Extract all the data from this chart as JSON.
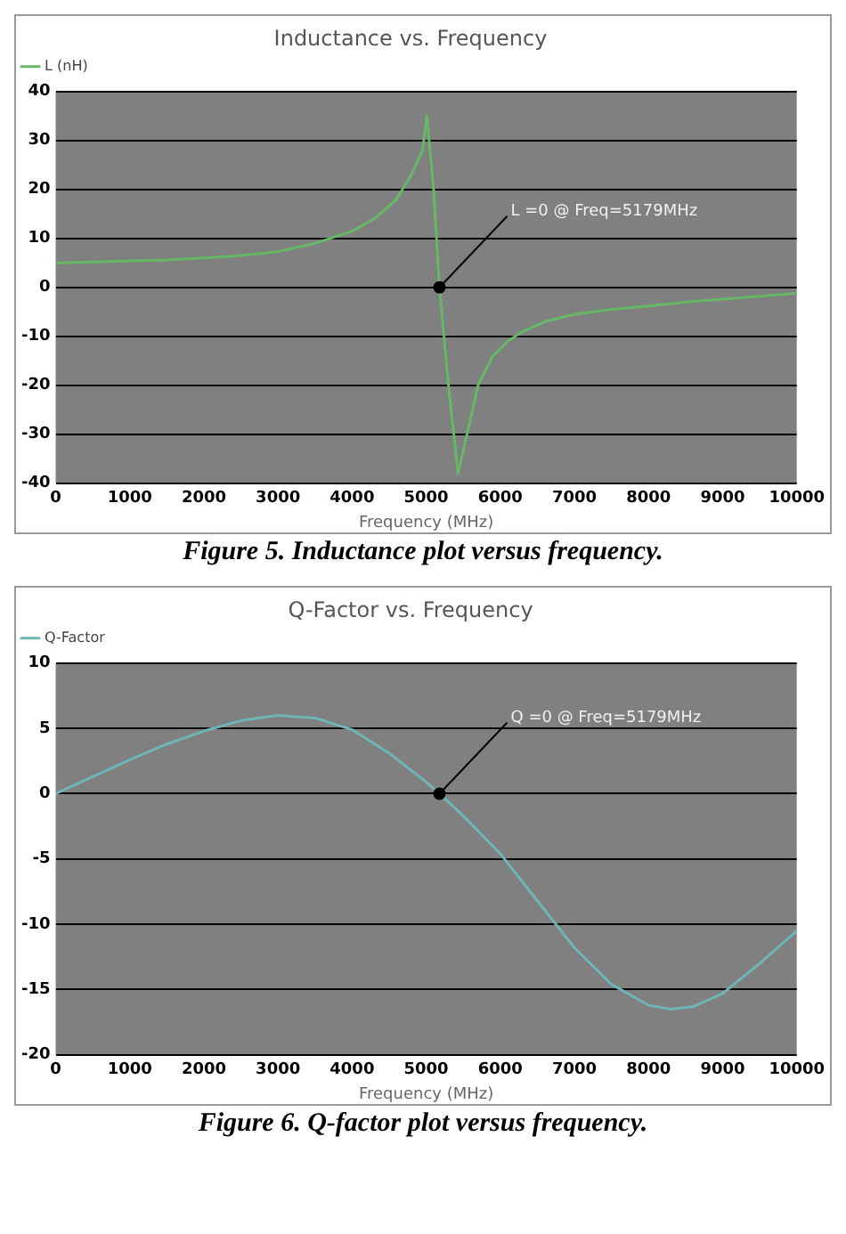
{
  "chart_data": [
    {
      "type": "line",
      "title": "Inductance vs. Frequency",
      "xlabel": "Frequency (MHz)",
      "series": [
        {
          "name": "L (nH)",
          "color": "#66b866",
          "x": [
            0,
            500,
            1000,
            1500,
            2000,
            2500,
            3000,
            3500,
            4000,
            4300,
            4600,
            4800,
            4950,
            5010,
            5100,
            5179,
            5300,
            5430,
            5550,
            5700,
            5900,
            6100,
            6300,
            6600,
            7000,
            7500,
            8000,
            8500,
            9000,
            9500,
            10000
          ],
          "values": [
            5,
            5.2,
            5.4,
            5.6,
            6,
            6.5,
            7.3,
            9,
            11.5,
            14,
            18,
            23,
            28,
            35,
            20,
            0,
            -20,
            -38,
            -30,
            -20,
            -14,
            -11,
            -9,
            -7,
            -5.5,
            -4.5,
            -3.8,
            -3,
            -2.4,
            -1.8,
            -1.2
          ]
        }
      ],
      "xlim": [
        0,
        10000
      ],
      "xticks": [
        0,
        1000,
        2000,
        3000,
        4000,
        5000,
        6000,
        7000,
        8000,
        9000,
        10000
      ],
      "ylim": [
        -40,
        40
      ],
      "yticks": [
        -40,
        -30,
        -20,
        -10,
        0,
        10,
        20,
        30,
        40
      ],
      "grid": "y",
      "legend": "top left",
      "marker": "none",
      "line_style": "solid",
      "annotations": [
        {
          "text": "L =0 @ Freq=5179MHz",
          "x": 5179,
          "y": 0
        },
        "Figure 5.  Inductance plot versus frequency."
      ]
    },
    {
      "type": "line",
      "title": "Q-Factor vs. Frequency",
      "xlabel": "Frequency (MHz)",
      "series": [
        {
          "name": "Q-Factor",
          "color": "#6fb5b5",
          "x": [
            0,
            500,
            1000,
            1500,
            2000,
            2500,
            3000,
            3500,
            4000,
            4500,
            5000,
            5179,
            5500,
            6000,
            6500,
            7000,
            7500,
            8000,
            8300,
            8600,
            9000,
            9500,
            10000
          ],
          "values": [
            0,
            1.3,
            2.6,
            3.8,
            4.8,
            5.6,
            6,
            5.8,
            4.9,
            3.1,
            0.9,
            0,
            -1.7,
            -4.6,
            -8.2,
            -11.8,
            -14.6,
            -16.2,
            -16.5,
            -16.3,
            -15.3,
            -13,
            -10.5
          ]
        }
      ],
      "xlim": [
        0,
        10000
      ],
      "xticks": [
        0,
        1000,
        2000,
        3000,
        4000,
        5000,
        6000,
        7000,
        8000,
        9000,
        10000
      ],
      "ylim": [
        -20,
        10
      ],
      "yticks": [
        -20,
        -15,
        -10,
        -5,
        0,
        5,
        10
      ],
      "grid": "y",
      "legend": "top left",
      "marker": "none",
      "line_style": "solid",
      "annotations": [
        {
          "text": "Q =0 @ Freq=5179MHz",
          "x": 5179,
          "y": 0
        },
        "Figure 6.  Q-factor plot versus frequency."
      ]
    }
  ]
}
